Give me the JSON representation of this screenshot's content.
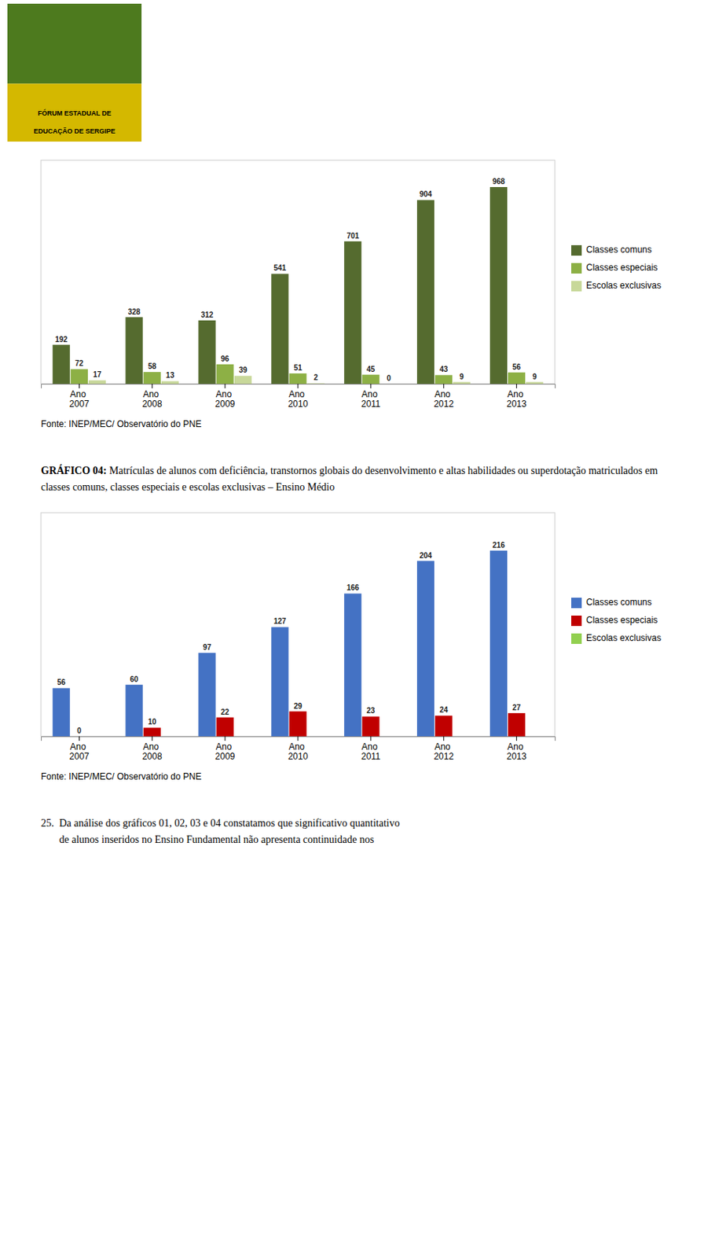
{
  "chart_data": [
    {
      "type": "bar",
      "categories": [
        "Ano\n2007",
        "Ano\n2008",
        "Ano\n2009",
        "Ano\n2010",
        "Ano\n2011",
        "Ano\n2012",
        "Ano\n2013"
      ],
      "series": [
        {
          "name": "Classes comuns",
          "color": "#556b2f",
          "values": [
            192,
            328,
            312,
            541,
            701,
            904,
            968
          ]
        },
        {
          "name": "Classes especiais",
          "color": "#8db045",
          "values": [
            72,
            58,
            96,
            51,
            45,
            43,
            56
          ]
        },
        {
          "name": "Escolas exclusivas",
          "color": "#c8d89a",
          "values": [
            17,
            13,
            39,
            2,
            0,
            9,
            9
          ]
        }
      ],
      "ylim": [
        0,
        1100
      ],
      "grid": false,
      "data_labels": true,
      "tick_labels": "x",
      "legend": "right",
      "annotations": [
        "Fonte: INEP/MEC/ Observatório do PNE"
      ]
    },
    {
      "type": "bar",
      "title": "GRÁFICO 04: Matrículas de alunos com deficiência, transtornos globais do desenvolvimento e altas habilidades ou superdotação matriculados em classes comuns, classes especiais e escolas exclusivas – Ensino Médio",
      "categories": [
        "Ano\n2007",
        "Ano\n2008",
        "Ano\n2009",
        "Ano\n2010",
        "Ano\n2011",
        "Ano\n2012",
        "Ano\n2013"
      ],
      "series": [
        {
          "name": "Classes comuns",
          "color": "#4472c4",
          "values": [
            56,
            60,
            97,
            127,
            166,
            204,
            216
          ]
        },
        {
          "name": "Classes especiais",
          "color": "#c00000",
          "values": [
            0,
            10,
            22,
            29,
            23,
            24,
            27
          ]
        },
        {
          "name": "Escolas exclusivas",
          "color": "#92d050",
          "values": [
            0,
            0,
            0,
            0,
            0,
            0,
            0
          ],
          "data_labels": false
        }
      ],
      "ylim": [
        0,
        260
      ],
      "grid": false,
      "data_labels": true,
      "tick_labels": "x",
      "legend": "right",
      "annotations": [
        "Fonte: INEP/MEC/ Observatório do PNE"
      ]
    }
  ],
  "logo_text": [
    "FÓRUM ESTADUAL DE",
    "EDUCAÇÃO DE SERGIPE"
  ],
  "footer_text": [
    "25.  Da análise dos gráficos 01, 02, 03 e 04 constatamos que significativo quantitativo",
    "       de alunos inseridos no Ensino Fundamental não apresenta continuidade nos"
  ]
}
